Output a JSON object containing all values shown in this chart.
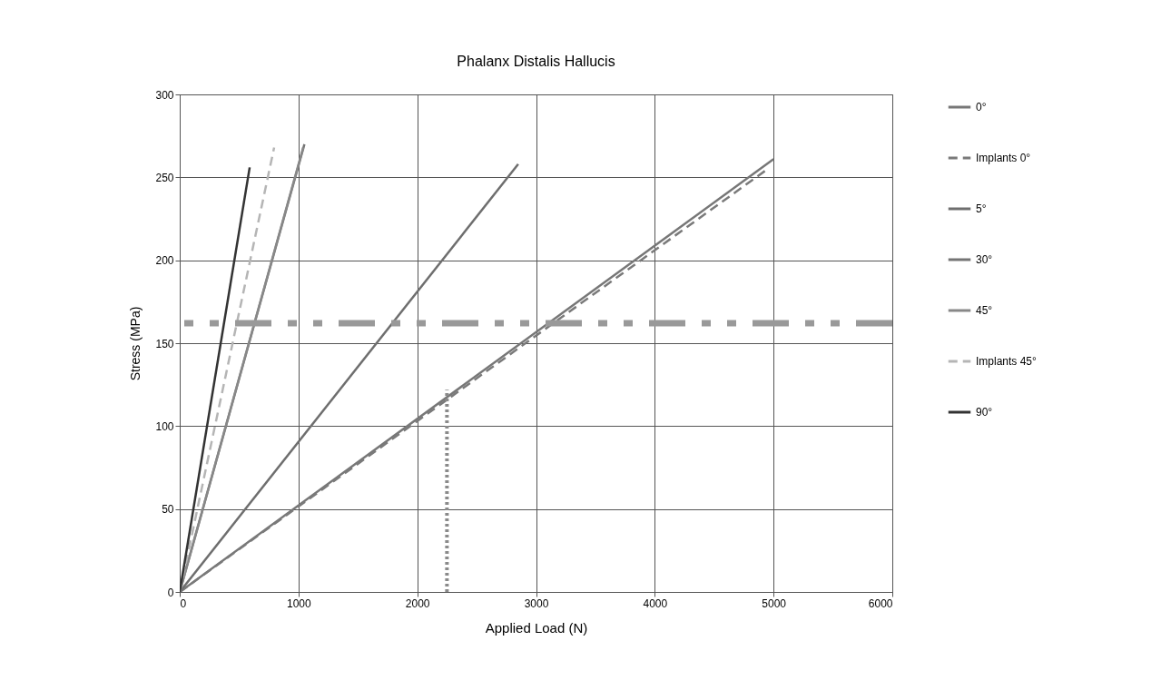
{
  "chart_data": {
    "type": "line",
    "title": "Phalanx Distalis Hallucis",
    "xlabel": "Applied Load (N)",
    "ylabel": "Stress (MPa)",
    "xlim": [
      0,
      6000
    ],
    "xticks": [
      0,
      1000,
      2000,
      3000,
      4000,
      5000,
      6000
    ],
    "ylim": [
      0,
      300
    ],
    "yticks": [
      0,
      50,
      100,
      150,
      200,
      250,
      300
    ],
    "grid": true,
    "legend": "right",
    "marker": "none",
    "series": [
      {
        "name": "0°",
        "color": "#777777",
        "x": [
          0,
          5000
        ],
        "values": [
          0,
          261
        ],
        "line_style": "solid"
      },
      {
        "name": "Implants 0°",
        "color": "#7a7a7a",
        "x": [
          0,
          4950
        ],
        "values": [
          0,
          255
        ],
        "line_style": "dashed"
      },
      {
        "name": "5°",
        "color": "#6e6e6e",
        "x": [
          0,
          2850
        ],
        "values": [
          0,
          258
        ],
        "line_style": "solid"
      },
      {
        "name": "30°",
        "color": "#747474",
        "x": [
          0,
          1050
        ],
        "values": [
          0,
          270
        ],
        "line_style": "solid"
      },
      {
        "name": "45°",
        "color": "#888888",
        "x": [
          0,
          1040
        ],
        "values": [
          0,
          268
        ],
        "line_style": "solid"
      },
      {
        "name": "Implants 45°",
        "color": "#b5b5b5",
        "x": [
          0,
          795
        ],
        "values": [
          0,
          268
        ],
        "line_style": "dashed"
      },
      {
        "name": "90°",
        "color": "#333333",
        "x": [
          0,
          589
        ],
        "values": [
          0,
          256
        ],
        "line_style": "solid"
      },
      {
        "color": "#8a8a8a",
        "x": [
          2250,
          2250
        ],
        "values": [
          0,
          122
        ],
        "line_style": "dotted"
      }
    ],
    "ref_lines": [
      {
        "axis": "y",
        "value": 162,
        "color": "#999999",
        "line_style": "dashed"
      }
    ]
  }
}
